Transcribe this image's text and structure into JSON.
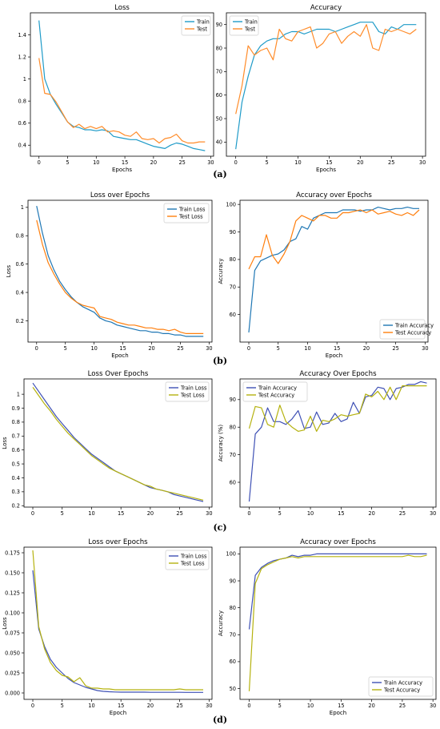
{
  "figure": {
    "panels": [
      {
        "label": "(a)"
      },
      {
        "label": "(b)"
      },
      {
        "label": "(c)"
      },
      {
        "label": "(d)"
      }
    ]
  },
  "chart_data": [
    {
      "type": "line",
      "panel": "(a)",
      "title": "Loss",
      "xlabel": "Epochs",
      "ylabel": "",
      "xlim": [
        -1.5,
        30.5
      ],
      "ylim": [
        0.3,
        1.6
      ],
      "xticks": [
        0,
        5,
        10,
        15,
        20,
        25,
        30
      ],
      "yticks": [
        0.4,
        0.6,
        0.8,
        1.0,
        1.2,
        1.4
      ],
      "legend": "top-right",
      "x": [
        0,
        1,
        2,
        3,
        4,
        5,
        6,
        7,
        8,
        9,
        10,
        11,
        12,
        13,
        14,
        15,
        16,
        17,
        18,
        19,
        20,
        21,
        22,
        23,
        24,
        25,
        26,
        27,
        28,
        29
      ],
      "series": [
        {
          "name": "Train",
          "color": "#1f9bc8",
          "values": [
            1.53,
            1.0,
            0.86,
            0.77,
            0.69,
            0.61,
            0.57,
            0.56,
            0.54,
            0.54,
            0.53,
            0.54,
            0.53,
            0.48,
            0.47,
            0.46,
            0.45,
            0.45,
            0.43,
            0.41,
            0.39,
            0.38,
            0.37,
            0.4,
            0.42,
            0.41,
            0.39,
            0.37,
            0.36,
            0.35
          ]
        },
        {
          "name": "Test",
          "color": "#ff8c2a",
          "values": [
            1.19,
            0.87,
            0.86,
            0.79,
            0.7,
            0.61,
            0.56,
            0.59,
            0.55,
            0.57,
            0.55,
            0.57,
            0.52,
            0.53,
            0.52,
            0.49,
            0.48,
            0.52,
            0.46,
            0.45,
            0.46,
            0.42,
            0.46,
            0.47,
            0.5,
            0.44,
            0.42,
            0.42,
            0.43,
            0.43
          ]
        }
      ]
    },
    {
      "type": "line",
      "panel": "(a)",
      "title": "Accuracy",
      "xlabel": "Epochs",
      "ylabel": "",
      "xlim": [
        -1.5,
        30.5
      ],
      "ylim": [
        34,
        95
      ],
      "xticks": [
        0,
        5,
        10,
        15,
        20,
        25,
        30
      ],
      "yticks": [
        40,
        50,
        60,
        70,
        80,
        90
      ],
      "legend": "top-left",
      "x": [
        0,
        1,
        2,
        3,
        4,
        5,
        6,
        7,
        8,
        9,
        10,
        11,
        12,
        13,
        14,
        15,
        16,
        17,
        18,
        19,
        20,
        21,
        22,
        23,
        24,
        25,
        26,
        27,
        28,
        29
      ],
      "series": [
        {
          "name": "Train",
          "color": "#1f9bc8",
          "values": [
            37,
            57,
            68,
            77,
            81,
            83,
            84,
            84,
            86,
            87,
            87,
            86,
            87,
            88,
            88,
            88,
            87,
            88,
            89,
            90,
            91,
            91,
            91,
            87,
            86,
            89,
            88,
            90,
            90,
            90
          ]
        },
        {
          "name": "Test",
          "color": "#ff8c2a",
          "values": [
            52,
            64,
            81,
            77,
            79,
            80,
            75,
            88,
            84,
            83,
            87,
            88,
            89,
            80,
            82,
            86,
            87,
            82,
            85,
            87,
            85,
            90,
            80,
            79,
            88,
            87,
            88,
            87,
            86,
            88
          ]
        }
      ]
    },
    {
      "type": "line",
      "panel": "(b)",
      "title": "Loss over Epochs",
      "xlabel": "Epoch",
      "ylabel": "Loss",
      "xlim": [
        -1.5,
        30.5
      ],
      "ylim": [
        0.05,
        1.05
      ],
      "xticks": [
        0,
        5,
        10,
        15,
        20,
        25,
        30
      ],
      "yticks": [
        0.2,
        0.4,
        0.6,
        0.8,
        1.0
      ],
      "legend": "top-right",
      "x": [
        0,
        1,
        2,
        3,
        4,
        5,
        6,
        7,
        8,
        9,
        10,
        11,
        12,
        13,
        14,
        15,
        16,
        17,
        18,
        19,
        20,
        21,
        22,
        23,
        24,
        25,
        26,
        27,
        28,
        29
      ],
      "series": [
        {
          "name": "Train Loss",
          "color": "#1f77b4",
          "values": [
            1.01,
            0.82,
            0.66,
            0.56,
            0.48,
            0.42,
            0.37,
            0.33,
            0.3,
            0.28,
            0.26,
            0.22,
            0.2,
            0.19,
            0.17,
            0.16,
            0.15,
            0.14,
            0.13,
            0.13,
            0.12,
            0.12,
            0.11,
            0.11,
            0.1,
            0.1,
            0.09,
            0.09,
            0.09,
            0.09
          ]
        },
        {
          "name": "Test Loss",
          "color": "#ff7f0e",
          "values": [
            0.91,
            0.74,
            0.61,
            0.53,
            0.46,
            0.4,
            0.36,
            0.33,
            0.31,
            0.3,
            0.29,
            0.23,
            0.22,
            0.21,
            0.19,
            0.18,
            0.17,
            0.17,
            0.16,
            0.15,
            0.15,
            0.14,
            0.14,
            0.13,
            0.14,
            0.12,
            0.11,
            0.11,
            0.11,
            0.11
          ]
        }
      ]
    },
    {
      "type": "line",
      "panel": "(b)",
      "title": "Accuracy over Epochs",
      "xlabel": "Epoch",
      "ylabel": "Accuracy",
      "xlim": [
        -1.5,
        30.5
      ],
      "ylim": [
        50,
        101.5
      ],
      "xticks": [
        0,
        5,
        10,
        15,
        20,
        25,
        30
      ],
      "yticks": [
        60,
        70,
        80,
        90,
        100
      ],
      "legend": "bottom-right",
      "x": [
        0,
        1,
        2,
        3,
        4,
        5,
        6,
        7,
        8,
        9,
        10,
        11,
        12,
        13,
        14,
        15,
        16,
        17,
        18,
        19,
        20,
        21,
        22,
        23,
        24,
        25,
        26,
        27,
        28,
        29
      ],
      "series": [
        {
          "name": "Train Accuracy",
          "color": "#1f77b4",
          "values": [
            53.5,
            76,
            79.5,
            80.5,
            81.5,
            82,
            83.5,
            86.5,
            87.5,
            92,
            91,
            95,
            96,
            97,
            97,
            97,
            98,
            98,
            98,
            97.5,
            98,
            98,
            99,
            98.5,
            98,
            98.5,
            98.5,
            99,
            98.5,
            98.5
          ]
        },
        {
          "name": "Test Accuracy",
          "color": "#ff7f0e",
          "values": [
            76.5,
            81,
            81,
            89,
            81.5,
            78.5,
            82,
            86.5,
            94,
            96,
            95,
            94,
            96,
            96,
            95,
            95,
            97,
            97,
            97.5,
            98,
            97,
            98,
            96.5,
            97,
            97.5,
            96.5,
            96,
            97,
            96,
            98
          ]
        }
      ]
    },
    {
      "type": "line",
      "panel": "(c)",
      "title": "Loss Over Epochs",
      "xlabel": "",
      "ylabel": "Loss",
      "xlim": [
        -1.5,
        30.5
      ],
      "ylim": [
        0.19,
        1.11
      ],
      "xticks": [
        0,
        5,
        10,
        15,
        20,
        25,
        30
      ],
      "yticks": [
        0.2,
        0.3,
        0.4,
        0.5,
        0.6,
        0.7,
        0.8,
        0.9,
        1.0
      ],
      "legend": "top-right",
      "x": [
        0,
        1,
        2,
        3,
        4,
        5,
        6,
        7,
        8,
        9,
        10,
        11,
        12,
        13,
        14,
        15,
        16,
        17,
        18,
        19,
        20,
        21,
        22,
        23,
        24,
        25,
        26,
        27,
        28,
        29
      ],
      "series": [
        {
          "name": "Train Loss",
          "color": "#3f51b5",
          "values": [
            1.08,
            1.02,
            0.96,
            0.9,
            0.84,
            0.79,
            0.74,
            0.69,
            0.65,
            0.61,
            0.57,
            0.54,
            0.51,
            0.48,
            0.45,
            0.43,
            0.41,
            0.39,
            0.37,
            0.35,
            0.33,
            0.32,
            0.31,
            0.3,
            0.28,
            0.27,
            0.26,
            0.25,
            0.24,
            0.23
          ]
        },
        {
          "name": "Test Loss",
          "color": "#b5b20f",
          "values": [
            1.05,
            0.99,
            0.93,
            0.88,
            0.82,
            0.77,
            0.72,
            0.68,
            0.64,
            0.6,
            0.56,
            0.53,
            0.5,
            0.47,
            0.45,
            0.43,
            0.41,
            0.39,
            0.37,
            0.35,
            0.34,
            0.32,
            0.31,
            0.3,
            0.29,
            0.28,
            0.27,
            0.26,
            0.25,
            0.24
          ]
        }
      ]
    },
    {
      "type": "line",
      "panel": "(c)",
      "title": "Accuracy Over Epochs",
      "xlabel": "",
      "ylabel": "Accuracy (%)",
      "xlim": [
        -1.5,
        30.5
      ],
      "ylim": [
        51,
        97.5
      ],
      "xticks": [
        0,
        5,
        10,
        15,
        20,
        25,
        30
      ],
      "yticks": [
        60,
        70,
        80,
        90
      ],
      "legend": "top-left",
      "x": [
        0,
        1,
        2,
        3,
        4,
        5,
        6,
        7,
        8,
        9,
        10,
        11,
        12,
        13,
        14,
        15,
        16,
        17,
        18,
        19,
        20,
        21,
        22,
        23,
        24,
        25,
        26,
        27,
        28,
        29
      ],
      "series": [
        {
          "name": "Train Accuracy",
          "color": "#3f51b5",
          "values": [
            53,
            77.5,
            80,
            87,
            82,
            82,
            81,
            83,
            86,
            79.5,
            80,
            85.5,
            81,
            81.5,
            85,
            82,
            83,
            89,
            85,
            91,
            91.5,
            94.5,
            94,
            90,
            94,
            94.5,
            95.5,
            95.5,
            96.5,
            96
          ]
        },
        {
          "name": "Test Accuracy",
          "color": "#b5b20f",
          "values": [
            79.5,
            87.5,
            87,
            81,
            80,
            88,
            82,
            80,
            78.5,
            79,
            84,
            78.5,
            82.5,
            82,
            83,
            84.5,
            84,
            84.5,
            85,
            92,
            91,
            93,
            90,
            94.5,
            90,
            95,
            95,
            95,
            95,
            95
          ]
        }
      ]
    },
    {
      "type": "line",
      "panel": "(d)",
      "title": "Loss over Epochs",
      "xlabel": "Epoch",
      "ylabel": "Loss",
      "xlim": [
        -1.5,
        30.5
      ],
      "ylim": [
        -0.008,
        0.182
      ],
      "xticks": [
        0,
        5,
        10,
        15,
        20,
        25,
        30
      ],
      "yticks": [
        0.0,
        0.025,
        0.05,
        0.075,
        0.1,
        0.125,
        0.15,
        0.175
      ],
      "ytick_labels": [
        "0.000",
        "0.025",
        "0.050",
        "0.075",
        "0.100",
        "0.125",
        "0.150",
        "0.175"
      ],
      "legend": "top-right",
      "x": [
        0,
        1,
        2,
        3,
        4,
        5,
        6,
        7,
        8,
        9,
        10,
        11,
        12,
        13,
        14,
        15,
        16,
        17,
        18,
        19,
        20,
        21,
        22,
        23,
        24,
        25,
        26,
        27,
        28,
        29
      ],
      "series": [
        {
          "name": "Train Loss",
          "color": "#3f51b5",
          "values": [
            0.153,
            0.08,
            0.058,
            0.042,
            0.032,
            0.025,
            0.018,
            0.013,
            0.01,
            0.007,
            0.005,
            0.003,
            0.002,
            0.0015,
            0.0012,
            0.001,
            0.001,
            0.001,
            0.001,
            0.001,
            0.0008,
            0.0008,
            0.0008,
            0.0008,
            0.0008,
            0.0008,
            0.0007,
            0.0007,
            0.0007,
            0.0007
          ]
        },
        {
          "name": "Test Loss",
          "color": "#b5b20f",
          "values": [
            0.178,
            0.083,
            0.055,
            0.038,
            0.028,
            0.022,
            0.02,
            0.014,
            0.019,
            0.009,
            0.006,
            0.006,
            0.005,
            0.005,
            0.004,
            0.004,
            0.004,
            0.004,
            0.004,
            0.004,
            0.004,
            0.004,
            0.004,
            0.004,
            0.004,
            0.005,
            0.004,
            0.004,
            0.004,
            0.004
          ]
        }
      ]
    },
    {
      "type": "line",
      "panel": "(d)",
      "title": "Accuracy over Epochs",
      "xlabel": "Epoch",
      "ylabel": "Accuracy",
      "xlim": [
        -1.5,
        30.5
      ],
      "ylim": [
        46,
        102.5
      ],
      "xticks": [
        0,
        5,
        10,
        15,
        20,
        25,
        30
      ],
      "yticks": [
        50,
        60,
        70,
        80,
        90,
        100
      ],
      "legend": "bottom-right",
      "x": [
        0,
        1,
        2,
        3,
        4,
        5,
        6,
        7,
        8,
        9,
        10,
        11,
        12,
        13,
        14,
        15,
        16,
        17,
        18,
        19,
        20,
        21,
        22,
        23,
        24,
        25,
        26,
        27,
        28,
        29
      ],
      "series": [
        {
          "name": "Train Accuracy",
          "color": "#3f51b5",
          "values": [
            72,
            92,
            95,
            96.5,
            97.5,
            98,
            98.5,
            99.5,
            99,
            99.5,
            99.5,
            100,
            100,
            100,
            100,
            100,
            100,
            100,
            100,
            100,
            100,
            100,
            100,
            100,
            100,
            100,
            100,
            100,
            100,
            100
          ]
        },
        {
          "name": "Test Accuracy",
          "color": "#b5b20f",
          "values": [
            49,
            89,
            94.5,
            96,
            97,
            98,
            98.5,
            99,
            98.5,
            99,
            99,
            99,
            99,
            99,
            99,
            99,
            99,
            99,
            99,
            99,
            99,
            99,
            99,
            99,
            99,
            99,
            99.5,
            99,
            99,
            99.5
          ]
        }
      ]
    }
  ]
}
